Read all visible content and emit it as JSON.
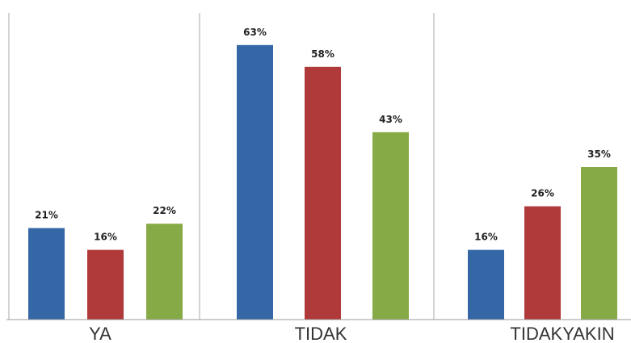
{
  "chart_data": {
    "type": "bar",
    "categories": [
      "YA",
      "TIDAK",
      "TIDAKYAKIN"
    ],
    "series": [
      {
        "values": [
          21,
          63,
          16
        ],
        "labels": [
          "21%",
          "63%",
          "16%"
        ],
        "color": "#3566A6"
      },
      {
        "values": [
          16,
          58,
          26
        ],
        "labels": [
          "16%",
          "58%",
          "26%"
        ],
        "color": "#B03A3A"
      },
      {
        "values": [
          22,
          43,
          35
        ],
        "labels": [
          "22%",
          "43%",
          "35%"
        ],
        "color": "#86AA46"
      }
    ],
    "ylim": [
      0,
      70
    ],
    "grid": false,
    "legend": "none",
    "title": "",
    "xlabel": "",
    "ylabel": ""
  }
}
